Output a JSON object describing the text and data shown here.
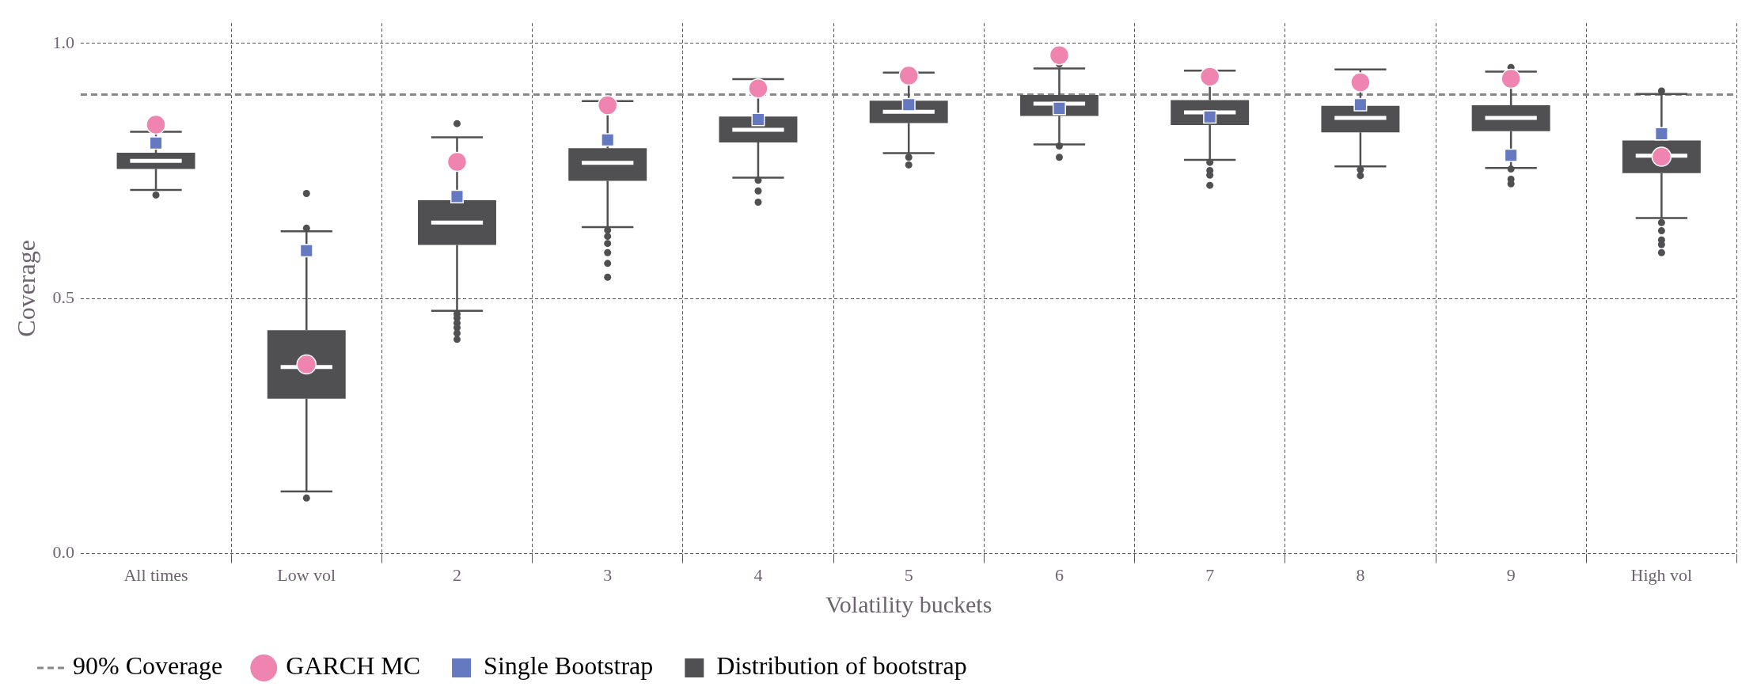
{
  "chart_data": {
    "type": "box",
    "xlabel": "Volatility buckets",
    "ylabel": "Coverage",
    "categories": [
      "All times",
      "Low vol",
      "2",
      "3",
      "4",
      "5",
      "6",
      "7",
      "8",
      "9",
      "High vol"
    ],
    "ylim": [
      0,
      1.04
    ],
    "yticks": [
      {
        "value": 0,
        "label": "0.0"
      },
      {
        "value": 0.5,
        "label": "0.5"
      },
      {
        "value": 1,
        "label": "1.0"
      }
    ],
    "grid": true,
    "legend": "bottom left",
    "ref_lines": [
      {
        "axis": "y",
        "value": 0.9,
        "label": "90% Coverage",
        "color": "#888888",
        "line_style": "dashed"
      }
    ],
    "series": [
      {
        "name": "GARCH MC",
        "type": "scatter",
        "marker": "circle",
        "color": "#f084b0",
        "x": [
          "All times",
          "Low vol",
          "2",
          "3",
          "4",
          "5",
          "6",
          "7",
          "8",
          "9",
          "High vol"
        ],
        "values": [
          0.841,
          0.371,
          0.768,
          0.879,
          0.912,
          0.937,
          0.977,
          0.935,
          0.924,
          0.931,
          0.778
        ]
      },
      {
        "name": "Single Bootstrap",
        "type": "scatter",
        "marker": "square",
        "color": "#6479c0",
        "x": [
          "All times",
          "Low vol",
          "2",
          "3",
          "4",
          "5",
          "6",
          "7",
          "8",
          "9",
          "High vol"
        ],
        "values": [
          0.805,
          0.594,
          0.7,
          0.811,
          0.851,
          0.88,
          0.873,
          0.856,
          0.88,
          0.781,
          0.823
        ]
      },
      {
        "name": "Distribution of bootstrap",
        "type": "box",
        "color": "#505052",
        "boxes": [
          {
            "low": 0.713,
            "q1": 0.754,
            "median": 0.77,
            "q3": 0.786,
            "high": 0.827,
            "outliers": [
              0.703
            ]
          },
          {
            "low": 0.122,
            "q1": 0.304,
            "median": 0.366,
            "q3": 0.438,
            "high": 0.632,
            "outliers": [
              0.109,
              0.638,
              0.706
            ]
          },
          {
            "low": 0.476,
            "q1": 0.605,
            "median": 0.649,
            "q3": 0.693,
            "high": 0.816,
            "outliers": [
              0.47,
              0.462,
              0.452,
              0.443,
              0.432,
              0.42,
              0.843
            ]
          },
          {
            "low": 0.64,
            "q1": 0.731,
            "median": 0.766,
            "q3": 0.795,
            "high": 0.887,
            "outliers": [
              0.634,
              0.622,
              0.608,
              0.59,
              0.569,
              0.542
            ]
          },
          {
            "low": 0.737,
            "q1": 0.806,
            "median": 0.831,
            "q3": 0.857,
            "high": 0.93,
            "outliers": [
              0.732,
              0.711,
              0.689
            ]
          },
          {
            "low": 0.785,
            "q1": 0.844,
            "median": 0.866,
            "q3": 0.888,
            "high": 0.943,
            "outliers": [
              0.777,
              0.762
            ]
          },
          {
            "low": 0.802,
            "q1": 0.858,
            "median": 0.882,
            "q3": 0.899,
            "high": 0.951,
            "outliers": [
              0.799,
              0.777,
              0.96
            ]
          },
          {
            "low": 0.772,
            "q1": 0.84,
            "median": 0.865,
            "q3": 0.889,
            "high": 0.947,
            "outliers": [
              0.767,
              0.751,
              0.742,
              0.722
            ]
          },
          {
            "low": 0.759,
            "q1": 0.826,
            "median": 0.854,
            "q3": 0.878,
            "high": 0.949,
            "outliers": [
              0.753,
              0.741
            ]
          },
          {
            "low": 0.756,
            "q1": 0.828,
            "median": 0.854,
            "q3": 0.879,
            "high": 0.945,
            "outliers": [
              0.754,
              0.734,
              0.725,
              0.953
            ]
          },
          {
            "low": 0.658,
            "q1": 0.746,
            "median": 0.78,
            "q3": 0.81,
            "high": 0.901,
            "outliers": [
              0.649,
              0.633,
              0.615,
              0.606,
              0.59,
              0.907
            ]
          }
        ]
      }
    ]
  }
}
